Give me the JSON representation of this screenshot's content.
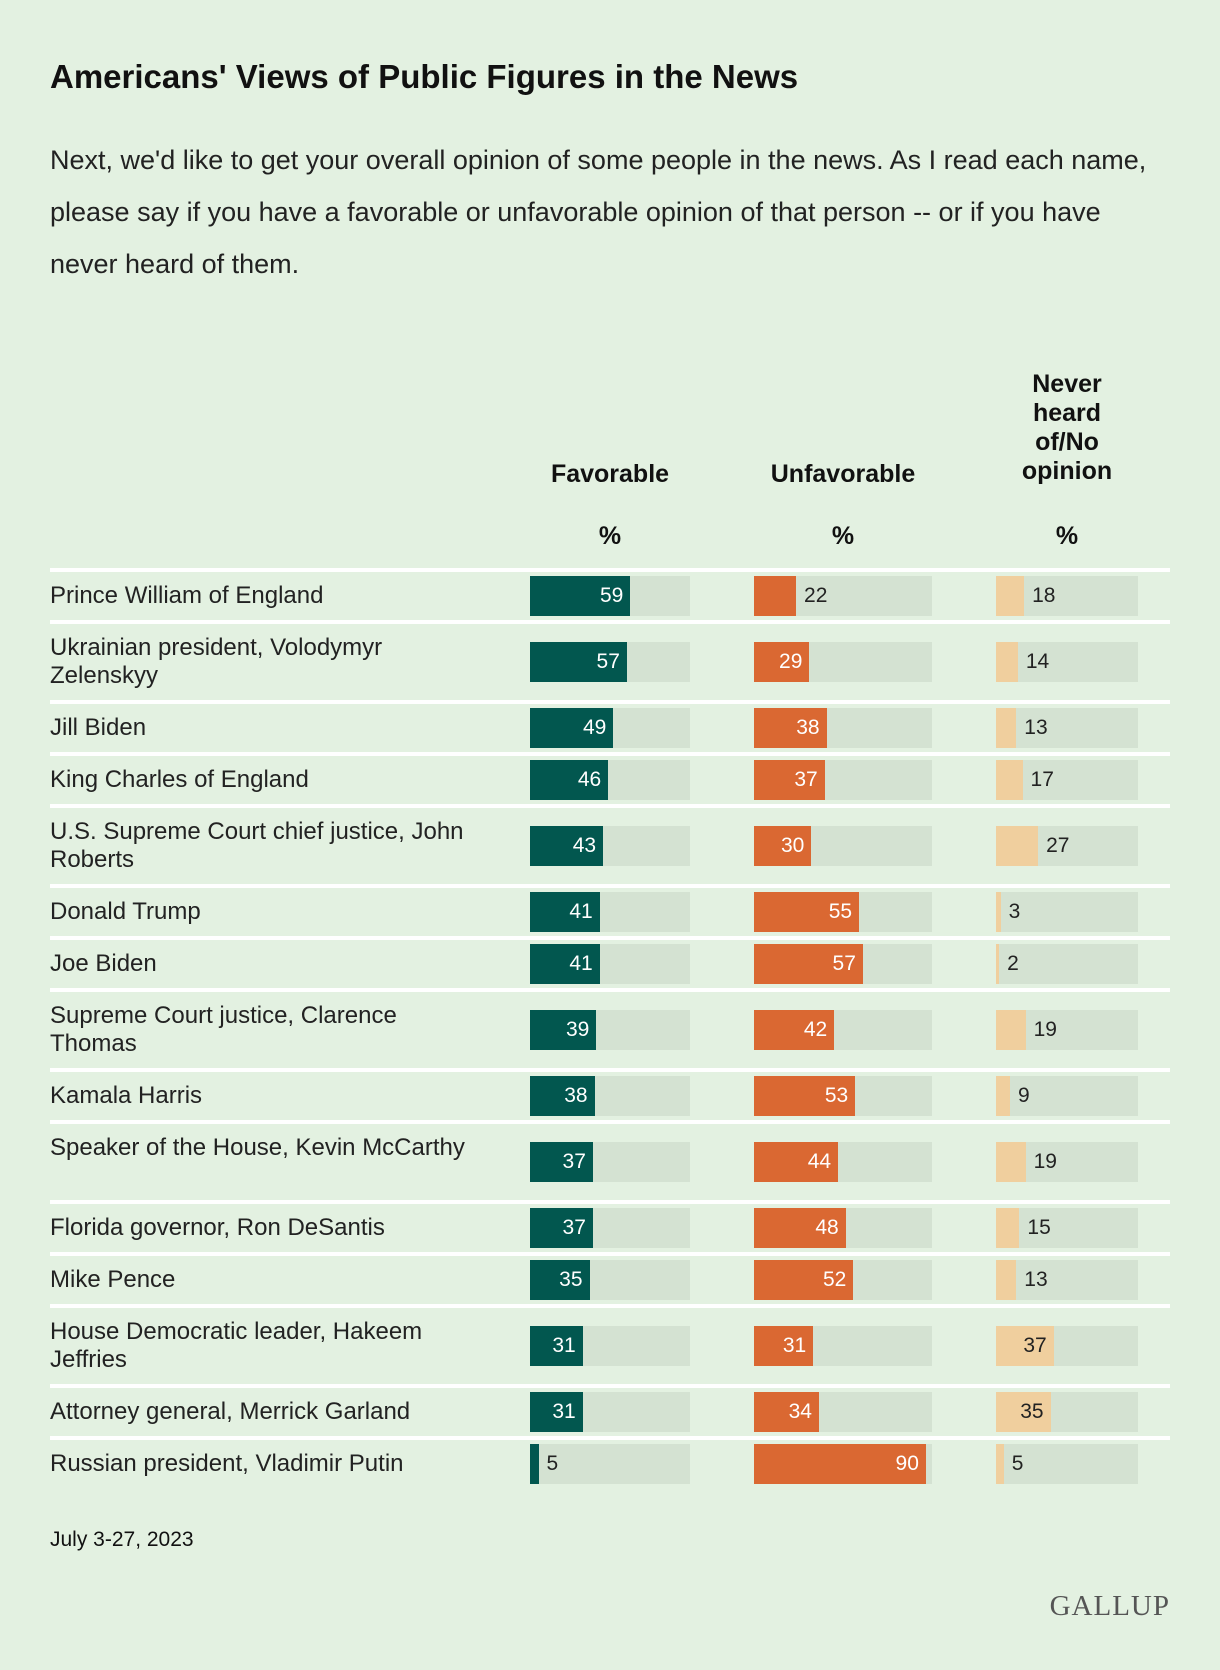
{
  "colors": {
    "background": "#e3f1e1",
    "favorable": "#02574f",
    "unfavorable": "#da6832",
    "never": "#f0cf9e",
    "track": "#d4e2d2"
  },
  "chart_data": {
    "type": "bar",
    "title": "Americans' Views of Public Figures in the News",
    "subtitle": "Next, we'd like to get your overall opinion of some people in the news. As I read each name, please say if you have a favorable or unfavorable opinion of that person -- or if you have never heard of them.",
    "unit": "%",
    "categories": [
      "Prince William of England",
      "Ukrainian president, Volodymyr Zelenskyy",
      "Jill Biden",
      "King Charles of England",
      "U.S. Supreme Court chief justice, John Roberts",
      "Donald Trump",
      "Joe Biden",
      "Supreme Court justice, Clarence Thomas",
      "Kamala Harris",
      "Speaker of the House, Kevin McCarthy",
      "Florida governor, Ron DeSantis",
      "Mike Pence",
      "House Democratic leader, Hakeem Jeffries",
      "Attorney general, Merrick Garland",
      "Russian president, Vladimir Putin"
    ],
    "series": [
      {
        "name": "Favorable",
        "values": [
          59,
          57,
          49,
          46,
          43,
          41,
          41,
          39,
          38,
          37,
          37,
          35,
          31,
          31,
          5
        ]
      },
      {
        "name": "Unfavorable",
        "values": [
          22,
          29,
          38,
          37,
          30,
          55,
          57,
          42,
          53,
          44,
          48,
          52,
          31,
          34,
          90
        ]
      },
      {
        "name": "Never heard of/No opinion",
        "values": [
          18,
          14,
          13,
          17,
          27,
          3,
          2,
          19,
          9,
          19,
          15,
          13,
          37,
          35,
          5
        ]
      }
    ],
    "xlim": [
      0,
      100
    ]
  },
  "headers": {
    "favorable": "Favorable",
    "unfavorable": "Unfavorable",
    "never": [
      "Never",
      "heard",
      "of/No",
      "opinion"
    ],
    "pct": "%"
  },
  "footer": {
    "date": "July 3-27, 2023",
    "logo": "GALLUP"
  }
}
